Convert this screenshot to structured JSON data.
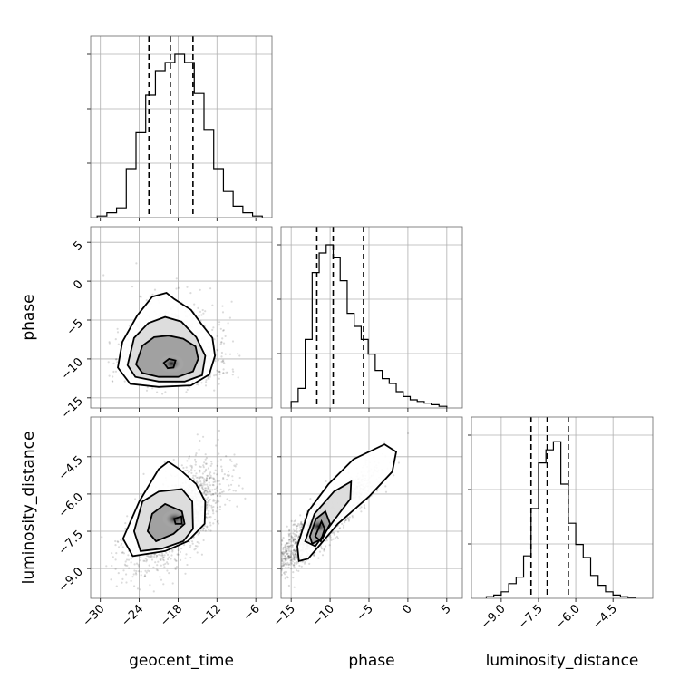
{
  "chart_data": {
    "type": "corner",
    "parameters": [
      "geocent_time",
      "phase",
      "luminosity_distance"
    ],
    "axis_labels": {
      "x": [
        "geocent_time",
        "phase",
        "luminosity_distance"
      ],
      "y": [
        "phase",
        "luminosity_distance"
      ]
    },
    "ranges": {
      "geocent_time": [
        -31.5,
        -3.5
      ],
      "phase": [
        -16.3,
        7.0
      ],
      "luminosity_distance": [
        -10.2,
        -2.9
      ]
    },
    "ticks": {
      "geocent_time": [
        -30,
        -24,
        -18,
        -12,
        -6
      ],
      "phase": [
        -15,
        -10,
        -5,
        0,
        5
      ],
      "luminosity_distance": [
        -9.0,
        -7.5,
        -6.0,
        -4.5
      ]
    },
    "tick_labels": {
      "geocent_time": [
        "−30",
        "−24",
        "−18",
        "−12",
        "−6"
      ],
      "phase": [
        "−15",
        "−10",
        "−5",
        "0",
        "5"
      ],
      "luminosity_distance": [
        "−9.0",
        "−7.5",
        "−6.0",
        "−4.5"
      ]
    },
    "marginals": {
      "geocent_time": {
        "bin_edges": [
          -30.5,
          -29.0,
          -27.5,
          -26.0,
          -24.5,
          -23.0,
          -21.5,
          -20.0,
          -18.5,
          -17.0,
          -15.5,
          -14.0,
          -12.5,
          -11.0,
          -9.5,
          -8.0,
          -6.5,
          -5.0
        ],
        "counts": [
          0.01,
          0.03,
          0.06,
          0.3,
          0.52,
          0.75,
          0.9,
          0.95,
          1.0,
          0.95,
          0.76,
          0.54,
          0.3,
          0.16,
          0.07,
          0.03,
          0.01
        ],
        "quantiles": [
          -22.5,
          -19.2,
          -15.7
        ]
      },
      "phase": {
        "bin_edges": [
          -15.0,
          -14.1,
          -13.2,
          -12.3,
          -11.4,
          -10.5,
          -9.6,
          -8.7,
          -7.8,
          -6.9,
          -6.0,
          -5.1,
          -4.2,
          -3.3,
          -2.4,
          -1.5,
          -0.6,
          0.3,
          1.2,
          2.1,
          3.0,
          4.0,
          5.0
        ],
        "counts": [
          0.04,
          0.12,
          0.42,
          0.83,
          0.95,
          1.0,
          0.92,
          0.78,
          0.58,
          0.5,
          0.42,
          0.33,
          0.23,
          0.18,
          0.15,
          0.1,
          0.07,
          0.05,
          0.04,
          0.03,
          0.02,
          0.01
        ],
        "quantiles": [
          -11.7,
          -9.6,
          -5.7
        ]
      },
      "luminosity_distance": {
        "bin_edges": [
          -9.6,
          -9.3,
          -9.0,
          -8.7,
          -8.4,
          -8.1,
          -7.8,
          -7.5,
          -7.2,
          -6.9,
          -6.6,
          -6.3,
          -6.0,
          -5.7,
          -5.4,
          -5.1,
          -4.8,
          -4.5,
          -4.2,
          -3.9,
          -3.6
        ],
        "counts": [
          0.01,
          0.02,
          0.04,
          0.09,
          0.13,
          0.26,
          0.55,
          0.83,
          0.91,
          0.96,
          0.7,
          0.46,
          0.33,
          0.25,
          0.14,
          0.08,
          0.04,
          0.02,
          0.01,
          0.005
        ],
        "quantiles": [
          -7.8,
          -7.15,
          -6.3
        ]
      }
    },
    "joint": {
      "phase_vs_geocent_time": {
        "peak": [
          -19.0,
          -10.6
        ],
        "contours": [
          [
            [
              -24.5,
              -10.7
            ],
            [
              -23.5,
              -8.3
            ],
            [
              -21.7,
              -7.2
            ],
            [
              -19.5,
              -7.0
            ],
            [
              -17.2,
              -7.4
            ],
            [
              -15.3,
              -8.4
            ],
            [
              -14.9,
              -10.0
            ],
            [
              -15.7,
              -11.6
            ],
            [
              -18.0,
              -12.3
            ],
            [
              -21.0,
              -12.3
            ],
            [
              -23.5,
              -11.8
            ]
          ],
          [
            [
              -25.8,
              -10.8
            ],
            [
              -24.8,
              -7.3
            ],
            [
              -22.6,
              -5.4
            ],
            [
              -20.0,
              -4.6
            ],
            [
              -17.5,
              -5.2
            ],
            [
              -15.2,
              -7.2
            ],
            [
              -13.8,
              -9.6
            ],
            [
              -14.3,
              -12.1
            ],
            [
              -17.0,
              -12.9
            ],
            [
              -21.0,
              -12.9
            ],
            [
              -24.6,
              -12.3
            ]
          ],
          [
            [
              -27.3,
              -11.1
            ],
            [
              -26.6,
              -7.8
            ],
            [
              -24.3,
              -4.4
            ],
            [
              -22.0,
              -2.0
            ],
            [
              -19.8,
              -1.5
            ],
            [
              -18.6,
              -2.3
            ],
            [
              -16.0,
              -3.7
            ],
            [
              -14.4,
              -5.5
            ],
            [
              -12.7,
              -7.3
            ],
            [
              -12.3,
              -9.6
            ],
            [
              -13.2,
              -12.0
            ],
            [
              -16.0,
              -13.4
            ],
            [
              -21.0,
              -13.6
            ],
            [
              -25.4,
              -13.2
            ]
          ]
        ],
        "inner_contour": [
          [
            -20.2,
            -10.5
          ],
          [
            -19.4,
            -10.0
          ],
          [
            -18.4,
            -10.2
          ],
          [
            -18.7,
            -11.1
          ],
          [
            -19.6,
            -11.2
          ]
        ]
      },
      "luminosity_distance_vs_geocent_time": {
        "peak": [
          -18.5,
          -7.0
        ],
        "contours": [
          [
            [
              -22.7,
              -7.5
            ],
            [
              -22.0,
              -6.8
            ],
            [
              -20.0,
              -6.4
            ],
            [
              -17.4,
              -6.7
            ],
            [
              -17.0,
              -7.2
            ],
            [
              -18.7,
              -7.6
            ],
            [
              -21.4,
              -7.9
            ]
          ],
          [
            [
              -24.8,
              -7.5
            ],
            [
              -23.5,
              -6.3
            ],
            [
              -21.0,
              -5.9
            ],
            [
              -17.4,
              -5.8
            ],
            [
              -15.8,
              -6.3
            ],
            [
              -15.7,
              -7.4
            ],
            [
              -17.2,
              -7.9
            ],
            [
              -20.5,
              -8.2
            ],
            [
              -23.8,
              -8.3
            ]
          ],
          [
            [
              -26.5,
              -7.8
            ],
            [
              -24.0,
              -6.3
            ],
            [
              -21.0,
              -5.0
            ],
            [
              -19.5,
              -4.7
            ],
            [
              -17.8,
              -5.0
            ],
            [
              -15.2,
              -5.6
            ],
            [
              -13.8,
              -6.3
            ],
            [
              -13.9,
              -7.2
            ],
            [
              -16.5,
              -7.9
            ],
            [
              -20.0,
              -8.3
            ],
            [
              -25.0,
              -8.5
            ]
          ]
        ],
        "inner_contour": [
          [
            -18.6,
            -7.0
          ],
          [
            -17.5,
            -6.9
          ],
          [
            -17.4,
            -7.2
          ],
          [
            -18.4,
            -7.2
          ]
        ]
      },
      "luminosity_distance_vs_phase": {
        "peak": [
          -11.5,
          -7.3
        ],
        "contours": [
          [
            [
              -12.6,
              -7.7
            ],
            [
              -11.8,
              -7.0
            ],
            [
              -10.6,
              -6.7
            ],
            [
              -10.0,
              -7.2
            ],
            [
              -11.0,
              -7.8
            ],
            [
              -12.3,
              -8.0
            ]
          ],
          [
            [
              -13.2,
              -7.9
            ],
            [
              -12.0,
              -6.8
            ],
            [
              -9.5,
              -5.9
            ],
            [
              -7.3,
              -5.5
            ],
            [
              -7.4,
              -6.2
            ],
            [
              -9.6,
              -7.1
            ],
            [
              -11.9,
              -8.1
            ]
          ],
          [
            [
              -14.2,
              -8.1
            ],
            [
              -12.8,
              -6.7
            ],
            [
              -10.2,
              -5.6
            ],
            [
              -7.0,
              -4.6
            ],
            [
              -3.0,
              -4.0
            ],
            [
              -1.5,
              -4.3
            ],
            [
              -2.0,
              -5.1
            ],
            [
              -5.0,
              -6.1
            ],
            [
              -9.0,
              -7.2
            ],
            [
              -12.8,
              -8.6
            ],
            [
              -14.0,
              -8.7
            ]
          ]
        ],
        "inner_contour": [
          [
            -11.9,
            -7.7
          ],
          [
            -11.1,
            -7.1
          ],
          [
            -10.7,
            -7.4
          ],
          [
            -11.2,
            -7.9
          ]
        ]
      }
    },
    "grid": true
  }
}
